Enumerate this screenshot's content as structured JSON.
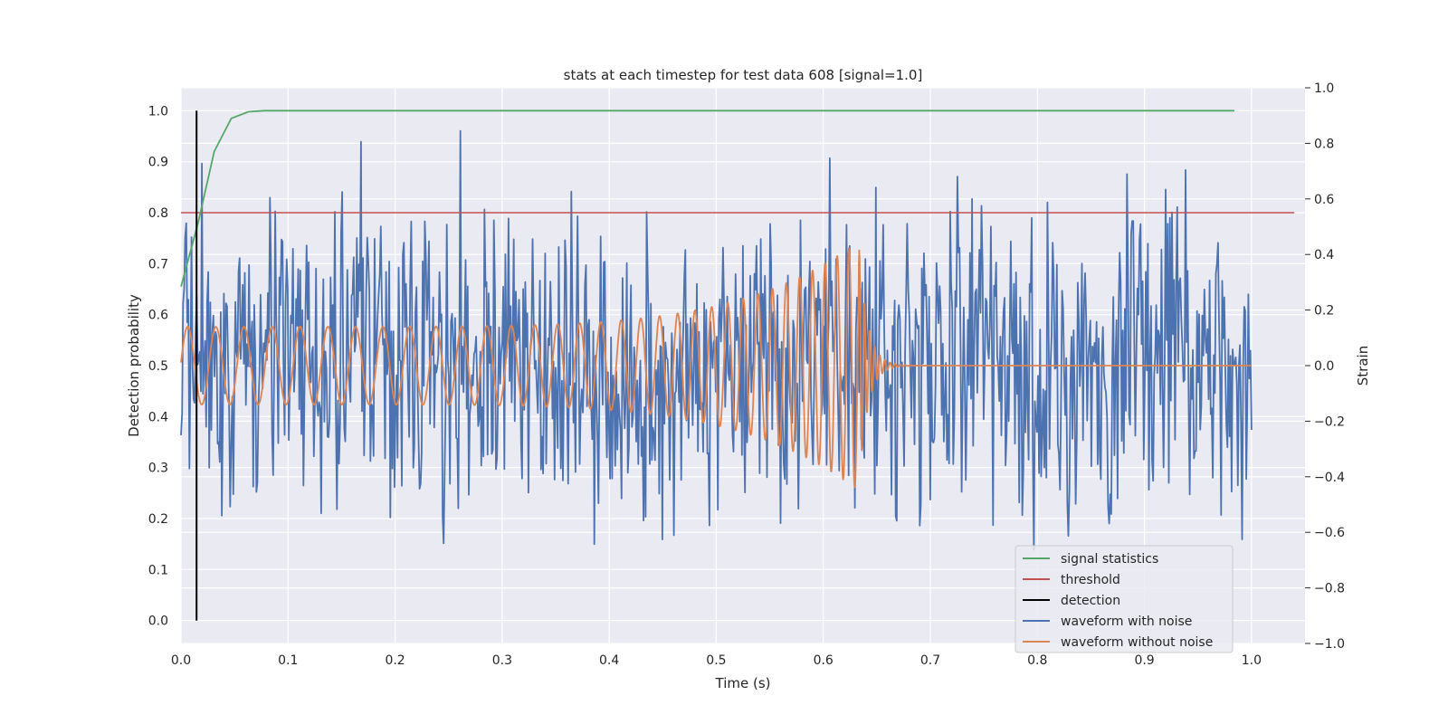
{
  "chart_data": {
    "type": "line",
    "title": "stats at each timestep for test data 608 [signal=1.0]",
    "xlabel": "Time (s)",
    "ylabel_left": "Detection probability",
    "ylabel_right": "Strain",
    "xlim": [
      0.0,
      1.05
    ],
    "ylim_left": [
      -0.045,
      1.045
    ],
    "ylim_right": [
      -1.0,
      1.0
    ],
    "x_ticks": [
      "0.0",
      "0.1",
      "0.2",
      "0.3",
      "0.4",
      "0.5",
      "0.6",
      "0.7",
      "0.8",
      "0.9",
      "1.0"
    ],
    "y_ticks_left": [
      "0.0",
      "0.1",
      "0.2",
      "0.3",
      "0.4",
      "0.5",
      "0.6",
      "0.7",
      "0.8",
      "0.9",
      "1.0"
    ],
    "y_ticks_right": [
      "−1.0",
      "−0.8",
      "−0.6",
      "−0.4",
      "−0.2",
      "0.0",
      "0.2",
      "0.4",
      "0.6",
      "0.8",
      "1.0"
    ],
    "grid": true,
    "legend_position": "lower-right",
    "series": [
      {
        "name": "signal statistics",
        "axis": "left",
        "color": "#55a868",
        "x": [
          0.0,
          0.016,
          0.031,
          0.047,
          0.063,
          0.078,
          0.1,
          0.2,
          0.3,
          0.4,
          0.5,
          0.6,
          0.7,
          0.8,
          0.9,
          0.984
        ],
        "y": [
          0.655,
          0.78,
          0.92,
          0.985,
          0.998,
          1.0,
          1.0,
          1.0,
          1.0,
          1.0,
          1.0,
          1.0,
          1.0,
          1.0,
          1.0,
          1.0
        ]
      },
      {
        "name": "threshold",
        "axis": "left",
        "color": "#c44e52",
        "x": [
          0.0,
          1.04
        ],
        "y": [
          0.8,
          0.8
        ]
      },
      {
        "name": "detection",
        "axis": "left",
        "color": "#000000",
        "x": [
          0.0145,
          0.0145
        ],
        "y": [
          0.0,
          1.0
        ]
      },
      {
        "name": "waveform with noise",
        "axis": "right",
        "color": "#4c72b0",
        "generated": true,
        "x_range": [
          0.0,
          1.0
        ],
        "samples": 1024,
        "amplitude_range": [
          -0.9,
          0.9
        ]
      },
      {
        "name": "waveform without noise",
        "axis": "right",
        "color": "#dd8452",
        "generated": true,
        "x_range": [
          0.0,
          1.0
        ],
        "start_amplitude": 0.14,
        "peak_amplitude": 0.45,
        "merger_time": 0.633,
        "start_frequency_hz": 38,
        "end_frequency_hz": 95
      }
    ]
  }
}
